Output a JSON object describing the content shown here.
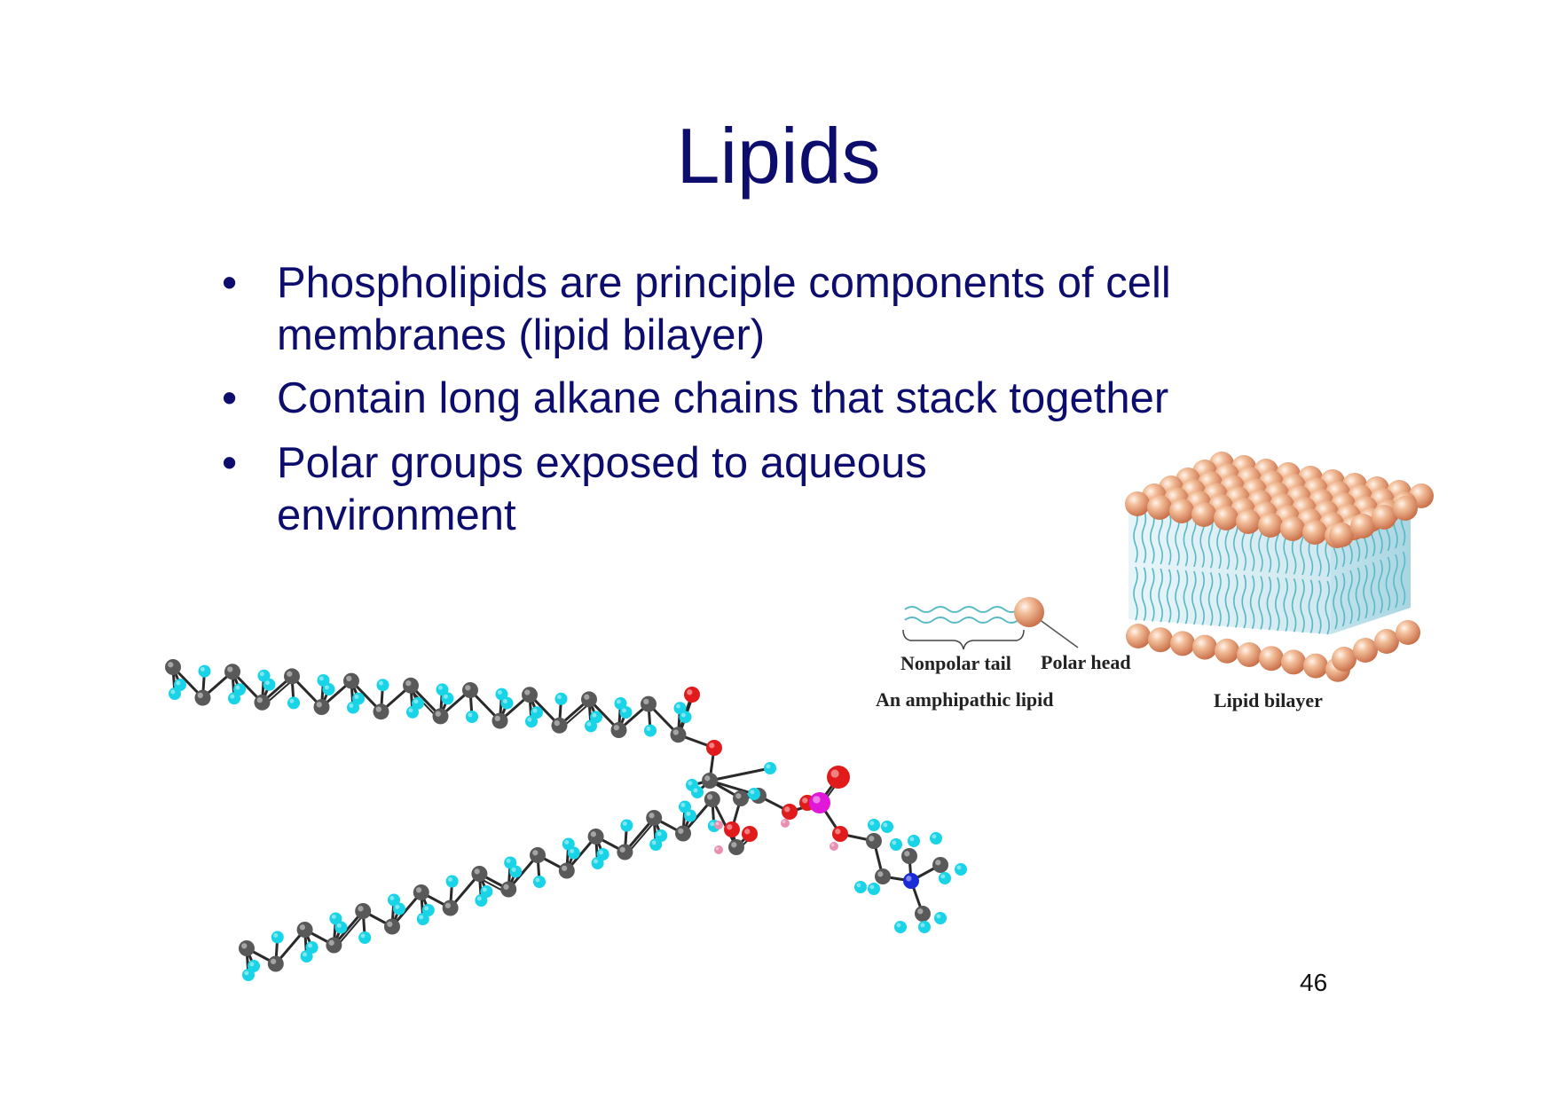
{
  "slide": {
    "title": "Lipids",
    "bullets": [
      "Phospholipids are principle components of cell membranes (lipid bilayer)",
      "Contain long alkane chains that stack together",
      "Polar groups exposed to aqueous environment"
    ],
    "page_number": "46"
  },
  "diagram": {
    "nonpolar_tail_label": "Nonpolar tail",
    "polar_head_label": "Polar head",
    "amphipathic_label": "An amphipathic lipid",
    "bilayer_label": "Lipid bilayer"
  },
  "colors": {
    "text": "#0d0d6e",
    "carbon": "#595959",
    "hydrogen": "#19d4e6",
    "oxygen": "#e11b1b",
    "phosphorus": "#e019d8",
    "nitrogen": "#1a2bd8",
    "lipid_head": "#e9a882",
    "tail_line": "#5bb9c7"
  }
}
